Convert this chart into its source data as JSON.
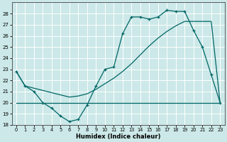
{
  "xlabel": "Humidex (Indice chaleur)",
  "bg_color": "#cce8e8",
  "grid_color": "#ffffff",
  "line_color": "#006666",
  "xlim": [
    -0.5,
    23.5
  ],
  "ylim": [
    18,
    29
  ],
  "yticks": [
    18,
    19,
    20,
    21,
    22,
    23,
    24,
    25,
    26,
    27,
    28
  ],
  "xticks": [
    0,
    1,
    2,
    3,
    4,
    5,
    6,
    7,
    8,
    9,
    10,
    11,
    12,
    13,
    14,
    15,
    16,
    17,
    18,
    19,
    20,
    21,
    22,
    23
  ],
  "line1_x": [
    0,
    1,
    2,
    3,
    4,
    5,
    6,
    7,
    8,
    9,
    10,
    11,
    12,
    13,
    14,
    15,
    16,
    17,
    18,
    19,
    20,
    21,
    22,
    23
  ],
  "line1_y": [
    20,
    20,
    20,
    20,
    20,
    20,
    20,
    20,
    20,
    20,
    20,
    20,
    20,
    20,
    20,
    20,
    20,
    20,
    20,
    20,
    20,
    20,
    20,
    20
  ],
  "line2_x": [
    0,
    1,
    2,
    3,
    4,
    5,
    6,
    7,
    8,
    9,
    10,
    11,
    12,
    13,
    14,
    15,
    16,
    17,
    18,
    19,
    20,
    21,
    22,
    23
  ],
  "line2_y": [
    22.8,
    21.5,
    21.0,
    20.0,
    19.5,
    18.8,
    18.3,
    18.5,
    19.8,
    21.5,
    23.0,
    23.2,
    26.2,
    27.7,
    27.7,
    27.5,
    27.7,
    28.3,
    28.2,
    28.2,
    26.5,
    25.0,
    22.5,
    20.0
  ],
  "line3_x": [
    0,
    1,
    2,
    3,
    4,
    5,
    6,
    7,
    8,
    9,
    10,
    11,
    12,
    13,
    14,
    15,
    16,
    17,
    18,
    19,
    20,
    21,
    22,
    23
  ],
  "line3_y": [
    22.8,
    21.5,
    21.3,
    21.1,
    20.9,
    20.7,
    20.5,
    20.6,
    20.8,
    21.2,
    21.7,
    22.2,
    22.8,
    23.5,
    24.3,
    25.1,
    25.8,
    26.4,
    26.9,
    27.3,
    27.3,
    27.3,
    27.3,
    20.0
  ]
}
